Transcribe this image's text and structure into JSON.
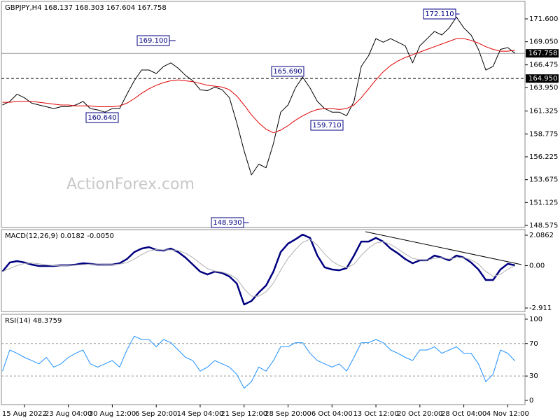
{
  "chart_data": [
    {
      "type": "line",
      "title": "GBPJPY,H4  168.137 168.303 167.604 167.758",
      "watermark": "ActionForex.com",
      "ylim": [
        148.34,
        173.55
      ],
      "yticks": [
        {
          "value": 171.6,
          "label": "171.600"
        },
        {
          "value": 169.05,
          "label": "169.050"
        },
        {
          "value": 166.475,
          "label": "166.475"
        },
        {
          "value": 163.95,
          "label": "163.950"
        },
        {
          "value": 161.325,
          "label": "161.325"
        },
        {
          "value": 158.775,
          "label": "158.775"
        },
        {
          "value": 156.225,
          "label": "156.225"
        },
        {
          "value": 153.675,
          "label": "153.675"
        },
        {
          "value": 151.125,
          "label": "151.125"
        },
        {
          "value": 148.575,
          "label": "148.575"
        }
      ],
      "series": [
        {
          "color": "#000000",
          "line_width": 1,
          "values": [
            162.0,
            162.4,
            163.2,
            162.8,
            162.2,
            162.0,
            161.8,
            161.6,
            161.8,
            161.8,
            162.0,
            162.4,
            161.6,
            161.45,
            161.2,
            161.6,
            161.6,
            163.2,
            164.7,
            165.9,
            165.9,
            165.5,
            166.3,
            166.7,
            166.1,
            165.3,
            164.7,
            163.7,
            163.6,
            164.0,
            163.7,
            162.8,
            160.0,
            156.9,
            154.2,
            155.4,
            155.0,
            157.7,
            161.2,
            162.0,
            163.9,
            165.1,
            163.9,
            162.4,
            161.6,
            161.2,
            161.2,
            160.8,
            162.4,
            166.3,
            167.5,
            169.4,
            169.0,
            169.4,
            169.0,
            168.6,
            166.7,
            168.6,
            169.4,
            170.2,
            169.8,
            170.6,
            171.8,
            170.6,
            169.8,
            168.2,
            165.9,
            166.3,
            168.2,
            168.4,
            167.758
          ]
        },
        {
          "color": "#e00000",
          "line_width": 1,
          "values": [
            162.3,
            162.3,
            162.4,
            162.4,
            162.4,
            162.3,
            162.2,
            162.1,
            162.0,
            162.0,
            161.9,
            161.9,
            161.9,
            161.8,
            161.8,
            161.8,
            161.9,
            162.2,
            162.7,
            163.3,
            163.8,
            164.2,
            164.5,
            164.7,
            164.8,
            164.7,
            164.6,
            164.4,
            164.2,
            164.1,
            164.0,
            163.7,
            163.0,
            162.0,
            160.9,
            160.0,
            159.3,
            158.9,
            159.2,
            159.7,
            160.3,
            160.8,
            161.2,
            161.5,
            161.6,
            161.6,
            161.5,
            161.6,
            162.0,
            162.8,
            163.8,
            164.8,
            165.7,
            166.4,
            166.9,
            167.3,
            167.6,
            167.9,
            168.2,
            168.5,
            168.8,
            169.1,
            169.4,
            169.4,
            169.2,
            168.9,
            168.5,
            168.2,
            168.0,
            168.0,
            168.1
          ]
        }
      ],
      "price_lines": [
        {
          "value": 167.758,
          "label": "167.758",
          "style": "solid"
        },
        {
          "value": 164.95,
          "label": "164.950",
          "style": "dashed"
        }
      ],
      "annotations": [
        {
          "value": 172.11,
          "label": "172.110"
        },
        {
          "value": 169.1,
          "label": "169.100"
        },
        {
          "value": 165.69,
          "label": "165.690"
        },
        {
          "value": 160.64,
          "label": "160.640"
        },
        {
          "value": 159.71,
          "label": "159.710"
        },
        {
          "value": 148.93,
          "label": "148.930"
        }
      ]
    },
    {
      "type": "line",
      "title": "MACD(12,26,9) 0.0182 -0.0050",
      "ylim": [
        -3.15,
        2.47
      ],
      "yticks": [
        2.0862,
        {
          "value": 0,
          "label": "0.00"
        },
        -2.911
      ],
      "series": [
        {
          "color": "#000080",
          "line_width": 2.5,
          "values": [
            -0.41,
            0.21,
            0.31,
            0.21,
            0.07,
            -0.03,
            -0.03,
            -0.03,
            0.02,
            0.02,
            0.07,
            0.16,
            0.12,
            0.07,
            0.07,
            0.07,
            0.16,
            0.45,
            0.93,
            1.17,
            1.27,
            1.08,
            1.03,
            1.17,
            0.93,
            0.55,
            0.07,
            -0.41,
            -0.61,
            -0.41,
            -0.51,
            -0.75,
            -1.23,
            -2.67,
            -2.43,
            -1.85,
            -1.37,
            -0.41,
            0.93,
            1.51,
            1.8,
            2.13,
            1.9,
            0.69,
            -0.12,
            -0.27,
            -0.32,
            -0.17,
            0.69,
            1.65,
            1.65,
            1.9,
            1.65,
            1.17,
            0.84,
            0.45,
            0.16,
            0.36,
            0.36,
            0.69,
            0.55,
            0.36,
            0.69,
            0.55,
            0.21,
            -0.27,
            -0.99,
            -0.99,
            -0.27,
            0.12,
            0.02
          ]
        },
        {
          "color": "#b0b0b0",
          "line_width": 1,
          "values": [
            -0.41,
            -0.2,
            0.0,
            0.15,
            0.18,
            0.12,
            0.05,
            0.0,
            -0.01,
            0.0,
            0.03,
            0.07,
            0.1,
            0.1,
            0.09,
            0.08,
            0.1,
            0.2,
            0.45,
            0.75,
            1.0,
            1.1,
            1.07,
            1.08,
            1.03,
            0.85,
            0.55,
            0.15,
            -0.2,
            -0.38,
            -0.45,
            -0.6,
            -0.9,
            -1.6,
            -2.1,
            -2.1,
            -1.8,
            -1.2,
            -0.3,
            0.5,
            1.1,
            1.6,
            1.8,
            1.4,
            0.8,
            0.3,
            0.0,
            -0.15,
            0.1,
            0.7,
            1.2,
            1.55,
            1.65,
            1.45,
            1.15,
            0.8,
            0.5,
            0.4,
            0.37,
            0.5,
            0.55,
            0.45,
            0.55,
            0.55,
            0.4,
            0.1,
            -0.4,
            -0.75,
            -0.6,
            -0.25,
            -0.01
          ]
        }
      ]
    },
    {
      "type": "line",
      "title": "RSI(14) 48.3759",
      "ylim": [
        -5.2,
        106
      ],
      "yticks": [
        100,
        70,
        30,
        0
      ],
      "levels": [
        70,
        30
      ],
      "categories": [
        null,
        null,
        null,
        "15 Aug 2022",
        null,
        null,
        null,
        null,
        null,
        "23 Aug 04:00",
        null,
        null,
        null,
        null,
        null,
        "30 Aug 12:00",
        null,
        null,
        null,
        null,
        null,
        "6 Sep 20:00",
        null,
        null,
        null,
        null,
        null,
        "14 Sep 04:00",
        null,
        null,
        null,
        null,
        null,
        "21 Sep 12:00",
        null,
        null,
        null,
        null,
        null,
        "28 Sep 20:00",
        null,
        null,
        null,
        null,
        null,
        "6 Oct 04:00",
        null,
        null,
        null,
        null,
        null,
        "13 Oct 12:00",
        null,
        null,
        null,
        null,
        null,
        "20 Oct 20:00",
        null,
        null,
        null,
        null,
        null,
        "28 Oct 04:00",
        null,
        null,
        null,
        null,
        null,
        "4 Nov 12:00",
        null
      ],
      "series": [
        {
          "color": "#1e90ff",
          "line_width": 1,
          "values": [
            36,
            62,
            58,
            53,
            49,
            45,
            53,
            41,
            45,
            53,
            58,
            62,
            45,
            41,
            45,
            49,
            41,
            62,
            79,
            75,
            75,
            66,
            75,
            71,
            62,
            53,
            49,
            36,
            41,
            49,
            45,
            41,
            32,
            15,
            23,
            41,
            36,
            49,
            66,
            66,
            71,
            71,
            58,
            49,
            45,
            41,
            45,
            36,
            53,
            71,
            71,
            75,
            71,
            62,
            58,
            53,
            49,
            62,
            62,
            66,
            58,
            62,
            66,
            58,
            58,
            45,
            23,
            32,
            62,
            58,
            48.38
          ]
        }
      ]
    }
  ]
}
